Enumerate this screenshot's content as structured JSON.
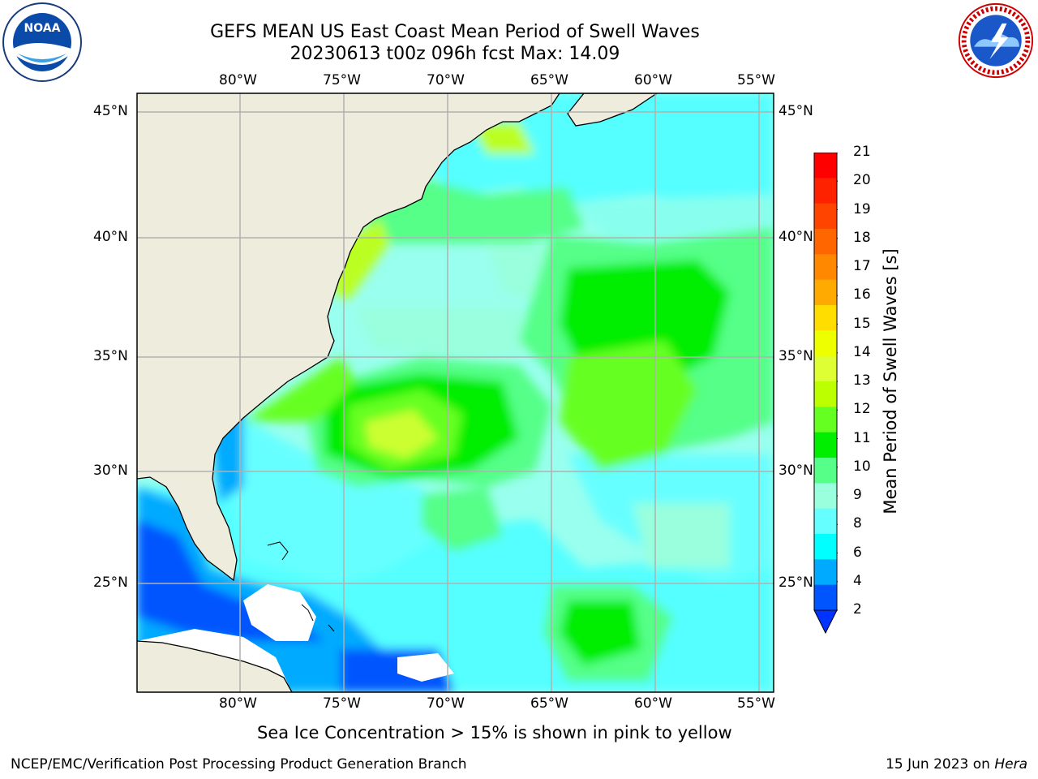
{
  "title": {
    "line1": "GEFS MEAN US East Coast Mean Period of Swell Waves",
    "line2": "20230613 t00z 096h fcst   Max: 14.09"
  },
  "map": {
    "lon_labels": [
      "80°W",
      "75°W",
      "70°W",
      "65°W",
      "60°W",
      "55°W"
    ],
    "lat_labels": [
      "45°N",
      "40°N",
      "35°N",
      "30°N",
      "25°N"
    ],
    "colors": {
      "land": "#eeecdc",
      "missing": "#ffffff",
      "grid": "#b0b0b0",
      "coast": "#000000"
    }
  },
  "colorbar": {
    "label": "Mean Period of Swell Waves [s]",
    "ticks": [
      "21",
      "20",
      "19",
      "18",
      "17",
      "16",
      "15",
      "14",
      "13",
      "12",
      "11",
      "10",
      "9",
      "8",
      "6",
      "4",
      "2"
    ],
    "bins": [
      {
        "color": "#ff0000"
      },
      {
        "color": "#ff2200"
      },
      {
        "color": "#ff4400"
      },
      {
        "color": "#ff6600"
      },
      {
        "color": "#ff8800"
      },
      {
        "color": "#ffaa00"
      },
      {
        "color": "#ffdd00"
      },
      {
        "color": "#eeff00"
      },
      {
        "color": "#ddff33"
      },
      {
        "color": "#bbff00"
      },
      {
        "color": "#66ff22"
      },
      {
        "color": "#00ee00"
      },
      {
        "color": "#55ff88"
      },
      {
        "color": "#99ffdd"
      },
      {
        "color": "#66ffff"
      },
      {
        "color": "#00ffff"
      },
      {
        "color": "#00aaff"
      },
      {
        "color": "#0055ff"
      }
    ],
    "under_color": "#0033ff"
  },
  "note": "Sea Ice Concentration > 15% is shown in pink to yellow",
  "footer": {
    "left": "NCEP/EMC/Verification Post Processing Product Generation Branch",
    "date": "15 Jun 2023 on ",
    "machine": "Hera"
  },
  "logos": {
    "noaa": "NOAA",
    "nws": "NATIONAL WEATHER SERVICE"
  }
}
